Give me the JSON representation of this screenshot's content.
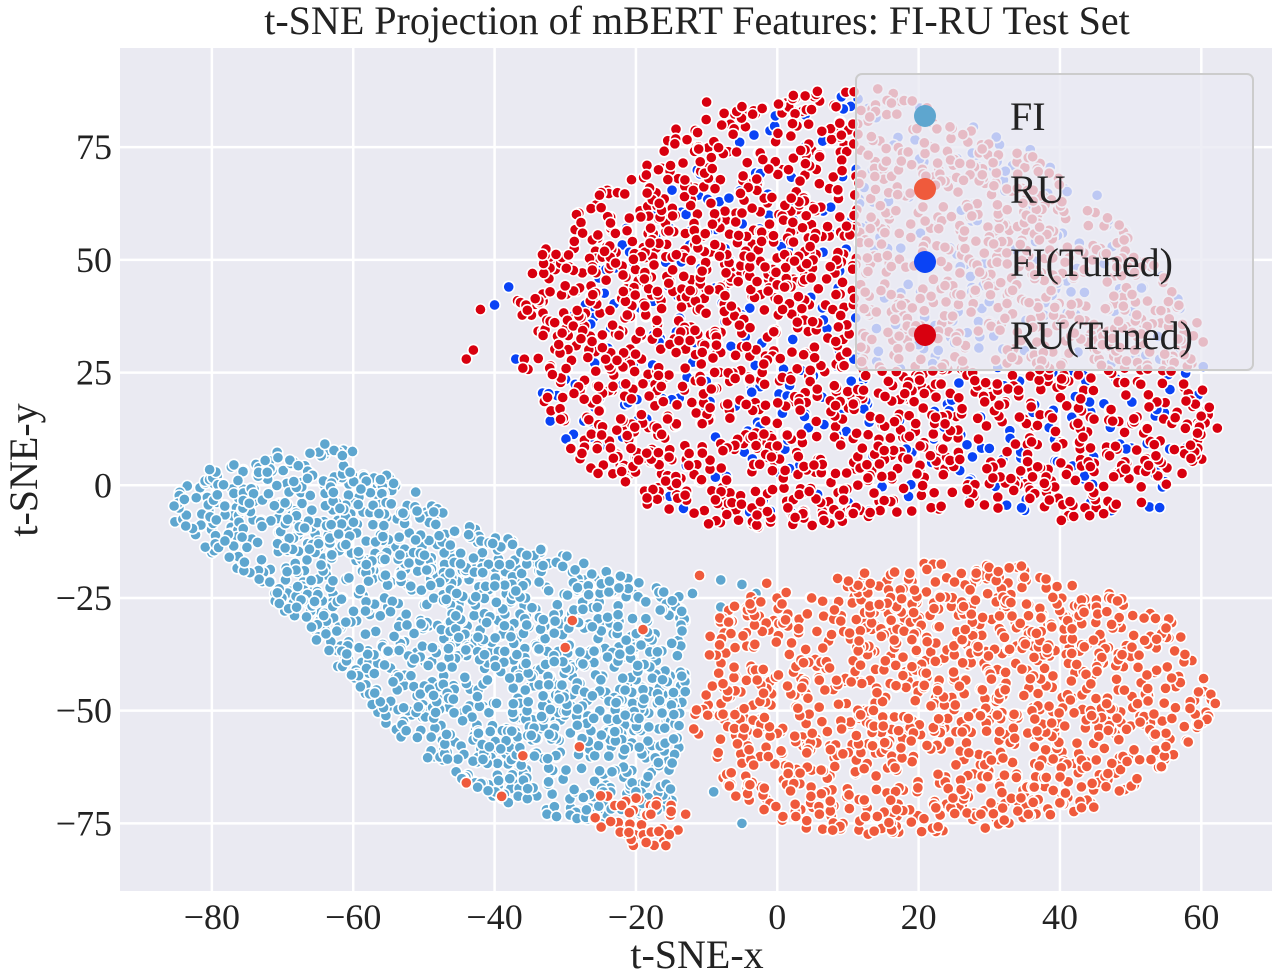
{
  "chart_data": {
    "type": "scatter",
    "title": "t-SNE Projection of mBERT Features: FI-RU Test Set",
    "xlabel": "t-SNE-x",
    "ylabel": "t-SNE-y",
    "xlim": [
      -93,
      70
    ],
    "ylim": [
      -90,
      97
    ],
    "xticks": [
      -80,
      -60,
      -40,
      -20,
      0,
      20,
      40,
      60
    ],
    "yticks": [
      -75,
      -50,
      -25,
      0,
      25,
      50,
      75
    ],
    "xtick_labels": [
      "−80",
      "−60",
      "−40",
      "−20",
      "0",
      "20",
      "40",
      "60"
    ],
    "ytick_labels": [
      "−75",
      "−50",
      "−25",
      "0",
      "25",
      "50",
      "75"
    ],
    "grid": true,
    "legend_position": "top-right",
    "series": [
      {
        "name": "FI",
        "color": "#5ea6cf",
        "clusters": [
          {
            "poly": [
              [
                -86,
                -3
              ],
              [
                -80,
                5
              ],
              [
                -62,
                10
              ],
              [
                -45,
                -8
              ],
              [
                -25,
                -18
              ],
              [
                -13,
                -25
              ],
              [
                -13,
                -48
              ],
              [
                -15,
                -72
              ],
              [
                -28,
                -75
              ],
              [
                -40,
                -70
              ],
              [
                -55,
                -55
              ],
              [
                -65,
                -35
              ],
              [
                -75,
                -20
              ],
              [
                -85,
                -10
              ]
            ],
            "n": 1500
          }
        ],
        "points": [
          [
            -8,
            -21
          ],
          [
            -5,
            -22
          ],
          [
            -3,
            -24
          ],
          [
            -8,
            -27
          ],
          [
            -12,
            -24
          ],
          [
            -17,
            -72
          ],
          [
            -20,
            -68
          ],
          [
            -9,
            -68
          ],
          [
            -27,
            -72
          ],
          [
            -25,
            -75
          ],
          [
            -5,
            -75
          ]
        ]
      },
      {
        "name": "RU",
        "color": "#ef5a3c",
        "clusters": [
          {
            "poly": [
              [
                -10,
                -32
              ],
              [
                -3,
                -22
              ],
              [
                8,
                -20
              ],
              [
                20,
                -17
              ],
              [
                36,
                -18
              ],
              [
                46,
                -23
              ],
              [
                56,
                -30
              ],
              [
                62,
                -45
              ],
              [
                62,
                -52
              ],
              [
                55,
                -62
              ],
              [
                45,
                -72
              ],
              [
                30,
                -76
              ],
              [
                15,
                -78
              ],
              [
                3,
                -76
              ],
              [
                -6,
                -70
              ],
              [
                -12,
                -55
              ]
            ],
            "n": 1200
          },
          {
            "poly": [
              [
                -25,
                -68
              ],
              [
                -17,
                -70
              ],
              [
                -12,
                -72
              ],
              [
                -15,
                -80
              ],
              [
                -22,
                -80
              ],
              [
                -28,
                -76
              ]
            ],
            "n": 45
          }
        ],
        "points": [
          [
            -29,
            -30
          ],
          [
            -30,
            -36
          ],
          [
            -28,
            -58
          ],
          [
            -19,
            -32
          ],
          [
            -36,
            -60
          ],
          [
            -39,
            -69
          ],
          [
            -44,
            -66
          ],
          [
            -11,
            -20
          ],
          [
            -21,
            -77
          ]
        ]
      },
      {
        "name": "FI(Tuned)",
        "color": "#0a43f5",
        "clusters": [
          {
            "poly": [
              [
                -32,
                33
              ],
              [
                -20,
                62
              ],
              [
                -5,
                78
              ],
              [
                5,
                87
              ],
              [
                20,
                84
              ],
              [
                35,
                76
              ],
              [
                48,
                62
              ],
              [
                58,
                40
              ],
              [
                62,
                20
              ],
              [
                55,
                -5
              ],
              [
                42,
                -8
              ],
              [
                20,
                -5
              ],
              [
                0,
                -8
              ],
              [
                -18,
                -5
              ],
              [
                -28,
                5
              ],
              [
                -36,
                20
              ]
            ],
            "n": 500
          }
        ],
        "points": [
          [
            -38,
            44
          ],
          [
            -37,
            28
          ],
          [
            -40,
            40
          ]
        ]
      },
      {
        "name": "RU(Tuned)",
        "color": "#d8000f",
        "clusters": [
          {
            "poly": [
              [
                -38,
                42
              ],
              [
                -28,
                62
              ],
              [
                -14,
                80
              ],
              [
                -5,
                85
              ],
              [
                5,
                88
              ],
              [
                15,
                88
              ],
              [
                28,
                80
              ],
              [
                42,
                68
              ],
              [
                52,
                52
              ],
              [
                60,
                35
              ],
              [
                63,
                15
              ],
              [
                60,
                5
              ],
              [
                52,
                -5
              ],
              [
                40,
                -8
              ],
              [
                25,
                -5
              ],
              [
                10,
                -8
              ],
              [
                0,
                -10
              ],
              [
                -15,
                -8
              ],
              [
                -28,
                5
              ],
              [
                -35,
                22
              ]
            ],
            "n": 2100
          }
        ],
        "points": [
          [
            -44,
            28
          ],
          [
            -43,
            30
          ],
          [
            -42,
            39
          ],
          [
            -36,
            26
          ],
          [
            -10,
            85
          ],
          [
            -5,
            84
          ]
        ]
      }
    ]
  }
}
